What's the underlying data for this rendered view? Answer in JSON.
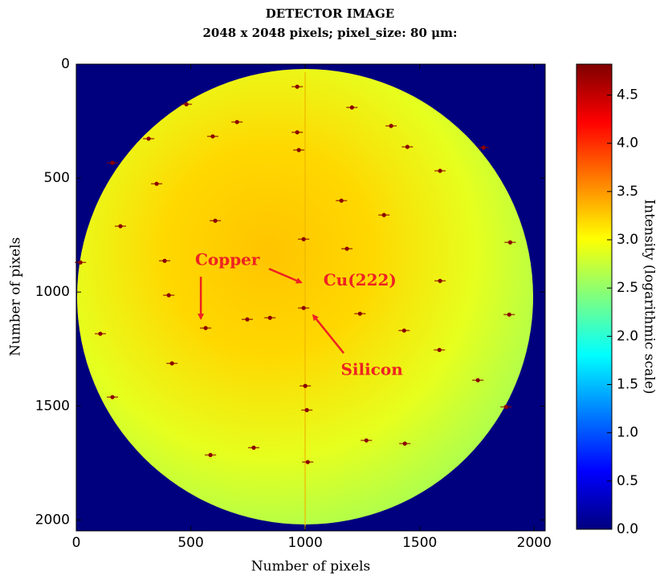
{
  "chart_data": {
    "type": "image",
    "title": "DETECTOR IMAGE",
    "subtitle": "2048 x 2048 pixels; pixel_size: 80 μm:",
    "x_label": "Number of pixels",
    "y_label": "Number of pixels",
    "colorbar_label": "Intensity (logarithmic scale)",
    "colormap": "jet",
    "xlim": [
      0,
      2048
    ],
    "ylim": [
      2048,
      0
    ],
    "xticks": [
      0,
      500,
      1000,
      1500,
      2000
    ],
    "yticks": [
      0,
      500,
      1000,
      1500,
      2000
    ],
    "clim": [
      0,
      4.82
    ],
    "cticks": [
      {
        "value": 0,
        "label": "0.0"
      },
      0.5,
      {
        "value": 1,
        "label": "1.0"
      },
      1.5,
      {
        "value": 2,
        "label": "2.0"
      },
      2.5,
      {
        "value": 3,
        "label": "3.0"
      },
      3.5,
      {
        "value": 4,
        "label": "4.0"
      },
      4.5
    ],
    "peaks": {
      "color": "#8b0000",
      "x": [
        965,
        481,
        702,
        1204,
        965,
        1375,
        316,
        596,
        1446,
        1779,
        158,
        972,
        1589,
        351,
        1158,
        607,
        1344,
        193,
        1895,
        18,
        386,
        1182,
        1589,
        993,
        404,
        1891,
        565,
        747,
        846,
        993,
        1239,
        1432,
        105,
        418,
        1586,
        158,
        1754,
        1000,
        1007,
        1877,
        586,
        775,
        1267,
        1435,
        1011
      ],
      "y": [
        99,
        176,
        254,
        190,
        299,
        271,
        327,
        317,
        363,
        366,
        433,
        377,
        468,
        525,
        599,
        687,
        662,
        711,
        782,
        870,
        863,
        810,
        951,
        768,
        1014,
        1099,
        1158,
        1120,
        1113,
        1070,
        1095,
        1169,
        1183,
        1313,
        1254,
        1461,
        1387,
        1412,
        1518,
        1504,
        1715,
        1683,
        1651,
        1665,
        1746
      ]
    },
    "annotations": [
      {
        "text": "Copper",
        "xytext": [
          660,
          863
        ],
        "arrow_from": [
          544,
          933
        ],
        "arrow_to": [
          544,
          1116
        ]
      },
      {
        "text": "Cu(222)",
        "xytext": [
          1239,
          951
        ],
        "arrow_from": [
          842,
          898
        ],
        "arrow_to": [
          982,
          958
        ]
      },
      {
        "text": "Silicon",
        "xytext": [
          1291,
          1345
        ],
        "arrow_from": [
          1168,
          1268
        ],
        "arrow_to": [
          1035,
          1102
        ]
      }
    ],
    "annotation_color": "#ee2222"
  }
}
